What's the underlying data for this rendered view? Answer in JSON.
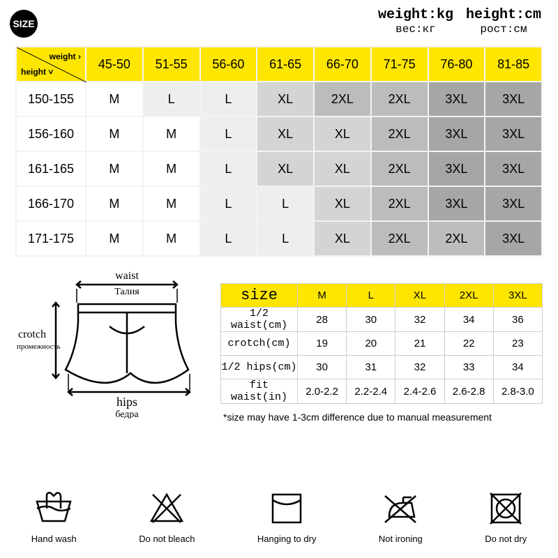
{
  "badge": "SIZE",
  "units": {
    "weight_en": "weight:kg",
    "weight_ru": "вес:кг",
    "height_en": "height:cm",
    "height_ru": "рост:см"
  },
  "main_table": {
    "corner": {
      "weight": "weight ›",
      "height": "height ˅"
    },
    "weight_headers": [
      "45-50",
      "51-55",
      "56-60",
      "61-65",
      "66-70",
      "71-75",
      "76-80",
      "81-85"
    ],
    "height_headers": [
      "150-155",
      "156-160",
      "161-165",
      "166-170",
      "171-175"
    ],
    "cells": [
      [
        "M",
        "L",
        "L",
        "XL",
        "2XL",
        "2XL",
        "3XL",
        "3XL"
      ],
      [
        "M",
        "M",
        "L",
        "XL",
        "XL",
        "2XL",
        "3XL",
        "3XL"
      ],
      [
        "M",
        "M",
        "L",
        "XL",
        "XL",
        "2XL",
        "3XL",
        "3XL"
      ],
      [
        "M",
        "M",
        "L",
        "L",
        "XL",
        "2XL",
        "3XL",
        "3XL"
      ],
      [
        "M",
        "M",
        "L",
        "L",
        "XL",
        "2XL",
        "2XL",
        "3XL"
      ]
    ],
    "shades": [
      [
        0,
        1,
        1,
        2,
        3,
        3,
        4,
        4
      ],
      [
        0,
        0,
        1,
        2,
        2,
        3,
        4,
        4
      ],
      [
        0,
        0,
        1,
        2,
        2,
        3,
        4,
        4
      ],
      [
        0,
        0,
        1,
        1,
        2,
        3,
        4,
        4
      ],
      [
        0,
        0,
        1,
        1,
        2,
        3,
        3,
        4
      ]
    ],
    "shade_colors": [
      "#ffffff",
      "#eeeeee",
      "#d4d4d4",
      "#bcbcbc",
      "#a6a6a6"
    ],
    "header_bg": "#ffe600",
    "border_color": "#f3f3f3"
  },
  "diagram_labels": {
    "waist_en": "waist",
    "waist_ru": "Талия",
    "crotch_en": "crotch",
    "crotch_ru": "промежность",
    "hips_en": "hips",
    "hips_ru": "бедра"
  },
  "meas_table": {
    "size_label": "size",
    "size_headers": [
      "M",
      "L",
      "XL",
      "2XL",
      "3XL"
    ],
    "rows": [
      {
        "label": "1/2 waist(cm)",
        "values": [
          "28",
          "30",
          "32",
          "34",
          "36"
        ]
      },
      {
        "label": "crotch(cm)",
        "values": [
          "19",
          "20",
          "21",
          "22",
          "23"
        ]
      },
      {
        "label": "1/2 hips(cm)",
        "values": [
          "30",
          "31",
          "32",
          "33",
          "34"
        ]
      },
      {
        "label": "fit waist(in)",
        "values": [
          "2.0-2.2",
          "2.2-2.4",
          "2.4-2.6",
          "2.6-2.8",
          "2.8-3.0"
        ]
      }
    ],
    "header_bg": "#ffe600"
  },
  "note": "*size may have 1-3cm difference due to manual measurement",
  "care": [
    {
      "name": "hand-wash-icon",
      "label": "Hand wash"
    },
    {
      "name": "no-bleach-icon",
      "label": "Do not bleach"
    },
    {
      "name": "hang-dry-icon",
      "label": "Hanging to dry"
    },
    {
      "name": "no-iron-icon",
      "label": "Not ironing"
    },
    {
      "name": "no-tumble-icon",
      "label": "Do not dry"
    }
  ],
  "colors": {
    "accent": "#ffe600",
    "line": "#000000"
  }
}
